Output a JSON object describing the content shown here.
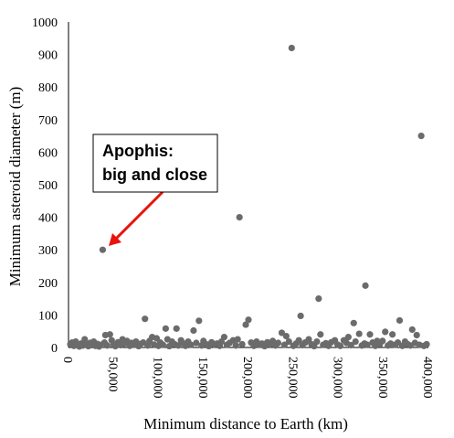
{
  "chart_data": {
    "type": "scatter",
    "xlabel": "Minimum distance to Earth (km)",
    "ylabel": "Minimum asteroid diameter (m)",
    "xlim": [
      0,
      400000
    ],
    "ylim": [
      0,
      1000
    ],
    "x_ticks": [
      "0",
      "50,000",
      "100,000",
      "150,000",
      "200,000",
      "250,000",
      "300,000",
      "350,000",
      "400,000"
    ],
    "y_ticks": [
      "0",
      "100",
      "200",
      "300",
      "400",
      "500",
      "600",
      "700",
      "800",
      "900",
      "1000"
    ],
    "grid": false,
    "point_color": "#6b6b6b",
    "annotation": {
      "line1": "Apophis:",
      "line2": "big and close",
      "arrow_color": "#e8140c",
      "target": [
        38000,
        300
      ]
    },
    "points": [
      [
        38000,
        300
      ],
      [
        190000,
        400
      ],
      [
        248000,
        920
      ],
      [
        392000,
        650
      ],
      [
        278000,
        150
      ],
      [
        330000,
        190
      ],
      [
        258000,
        97
      ],
      [
        317000,
        75
      ],
      [
        200000,
        85
      ],
      [
        197000,
        70
      ],
      [
        145000,
        82
      ],
      [
        85000,
        88
      ],
      [
        108000,
        58
      ],
      [
        120000,
        58
      ],
      [
        139000,
        52
      ],
      [
        183000,
        22
      ],
      [
        46000,
        40
      ],
      [
        41000,
        38
      ],
      [
        60000,
        25
      ],
      [
        93000,
        32
      ],
      [
        173000,
        32
      ],
      [
        237000,
        45
      ],
      [
        242000,
        35
      ],
      [
        267000,
        25
      ],
      [
        280000,
        40
      ],
      [
        296000,
        22
      ],
      [
        306000,
        22
      ],
      [
        311000,
        32
      ],
      [
        323000,
        42
      ],
      [
        335000,
        40
      ],
      [
        343000,
        20
      ],
      [
        352000,
        48
      ],
      [
        360000,
        40
      ],
      [
        368000,
        83
      ],
      [
        382000,
        55
      ],
      [
        387000,
        38
      ],
      [
        2000,
        10
      ],
      [
        4000,
        15
      ],
      [
        6000,
        5
      ],
      [
        8000,
        18
      ],
      [
        10000,
        8
      ],
      [
        12000,
        3
      ],
      [
        14000,
        12
      ],
      [
        16000,
        6
      ],
      [
        18000,
        25
      ],
      [
        20000,
        10
      ],
      [
        22000,
        4
      ],
      [
        24000,
        14
      ],
      [
        26000,
        7
      ],
      [
        28000,
        18
      ],
      [
        30000,
        5
      ],
      [
        32000,
        11
      ],
      [
        34000,
        3
      ],
      [
        36000,
        8
      ],
      [
        40000,
        15
      ],
      [
        43000,
        6
      ],
      [
        48000,
        22
      ],
      [
        50000,
        9
      ],
      [
        52000,
        4
      ],
      [
        55000,
        16
      ],
      [
        58000,
        7
      ],
      [
        62000,
        12
      ],
      [
        65000,
        20
      ],
      [
        68000,
        5
      ],
      [
        70000,
        14
      ],
      [
        73000,
        8
      ],
      [
        75000,
        18
      ],
      [
        78000,
        4
      ],
      [
        80000,
        11
      ],
      [
        83000,
        15
      ],
      [
        88000,
        6
      ],
      [
        90000,
        20
      ],
      [
        95000,
        9
      ],
      [
        98000,
        28
      ],
      [
        100000,
        5
      ],
      [
        102000,
        15
      ],
      [
        105000,
        8
      ],
      [
        110000,
        25
      ],
      [
        112000,
        4
      ],
      [
        115000,
        18
      ],
      [
        118000,
        10
      ],
      [
        122000,
        6
      ],
      [
        125000,
        22
      ],
      [
        128000,
        12
      ],
      [
        130000,
        5
      ],
      [
        133000,
        18
      ],
      [
        136000,
        8
      ],
      [
        142000,
        14
      ],
      [
        148000,
        6
      ],
      [
        150000,
        20
      ],
      [
        153000,
        10
      ],
      [
        156000,
        4
      ],
      [
        159000,
        16
      ],
      [
        162000,
        9
      ],
      [
        165000,
        12
      ],
      [
        168000,
        5
      ],
      [
        170000,
        18
      ],
      [
        176000,
        8
      ],
      [
        179000,
        14
      ],
      [
        186000,
        6
      ],
      [
        188000,
        25
      ],
      [
        193000,
        10
      ],
      [
        203000,
        15
      ],
      [
        206000,
        5
      ],
      [
        209000,
        18
      ],
      [
        212000,
        8
      ],
      [
        215000,
        12
      ],
      [
        218000,
        4
      ],
      [
        221000,
        16
      ],
      [
        224000,
        9
      ],
      [
        227000,
        20
      ],
      [
        230000,
        6
      ],
      [
        233000,
        14
      ],
      [
        240000,
        8
      ],
      [
        245000,
        18
      ],
      [
        250000,
        5
      ],
      [
        253000,
        12
      ],
      [
        256000,
        22
      ],
      [
        260000,
        7
      ],
      [
        263000,
        15
      ],
      [
        270000,
        10
      ],
      [
        273000,
        4
      ],
      [
        276000,
        18
      ],
      [
        283000,
        8
      ],
      [
        286000,
        13
      ],
      [
        289000,
        5
      ],
      [
        292000,
        16
      ],
      [
        299000,
        9
      ],
      [
        302000,
        5
      ],
      [
        309000,
        14
      ],
      [
        314000,
        7
      ],
      [
        319000,
        18
      ],
      [
        326000,
        6
      ],
      [
        329000,
        12
      ],
      [
        332000,
        8
      ],
      [
        338000,
        15
      ],
      [
        341000,
        5
      ],
      [
        346000,
        10
      ],
      [
        349000,
        20
      ],
      [
        355000,
        6
      ],
      [
        358000,
        12
      ],
      [
        363000,
        8
      ],
      [
        366000,
        15
      ],
      [
        371000,
        5
      ],
      [
        374000,
        18
      ],
      [
        377000,
        10
      ],
      [
        380000,
        6
      ],
      [
        385000,
        14
      ],
      [
        390000,
        8
      ],
      [
        395000,
        5
      ],
      [
        398000,
        10
      ]
    ]
  }
}
